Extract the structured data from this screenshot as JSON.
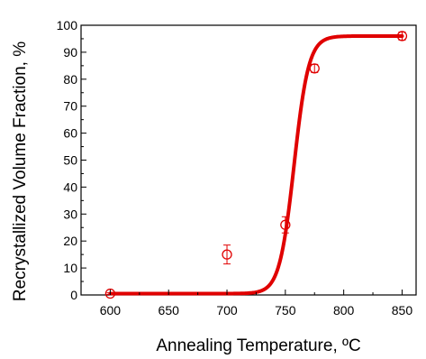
{
  "chart_data": {
    "type": "scatter",
    "xlabel": "Annealing Temperature, ºC",
    "ylabel": "Recrystallized Volume Fraction, %",
    "xlim": [
      575,
      862
    ],
    "ylim": [
      0,
      100
    ],
    "xticks": [
      600,
      650,
      700,
      750,
      800,
      850
    ],
    "yticks": [
      0,
      10,
      20,
      30,
      40,
      50,
      60,
      70,
      80,
      90,
      100
    ],
    "grid": false,
    "legend": "none",
    "colors": {
      "data": "#e00000",
      "fit": "#e00000",
      "axis": "#000000"
    },
    "series": [
      {
        "kind": "points-with-error-bars",
        "marker": "open-circle",
        "points": [
          {
            "x": 600,
            "y": 0.5,
            "err": 0.3
          },
          {
            "x": 700,
            "y": 15,
            "err": 3.5
          },
          {
            "x": 750,
            "y": 26,
            "err": 3.0
          },
          {
            "x": 775,
            "y": 84,
            "err": 1.5
          },
          {
            "x": 850,
            "y": 96,
            "err": 1.5
          }
        ]
      },
      {
        "kind": "sigmoid-fit-line",
        "min": 0.5,
        "max": 96,
        "x0": 757.5,
        "k": 0.16
      }
    ]
  }
}
